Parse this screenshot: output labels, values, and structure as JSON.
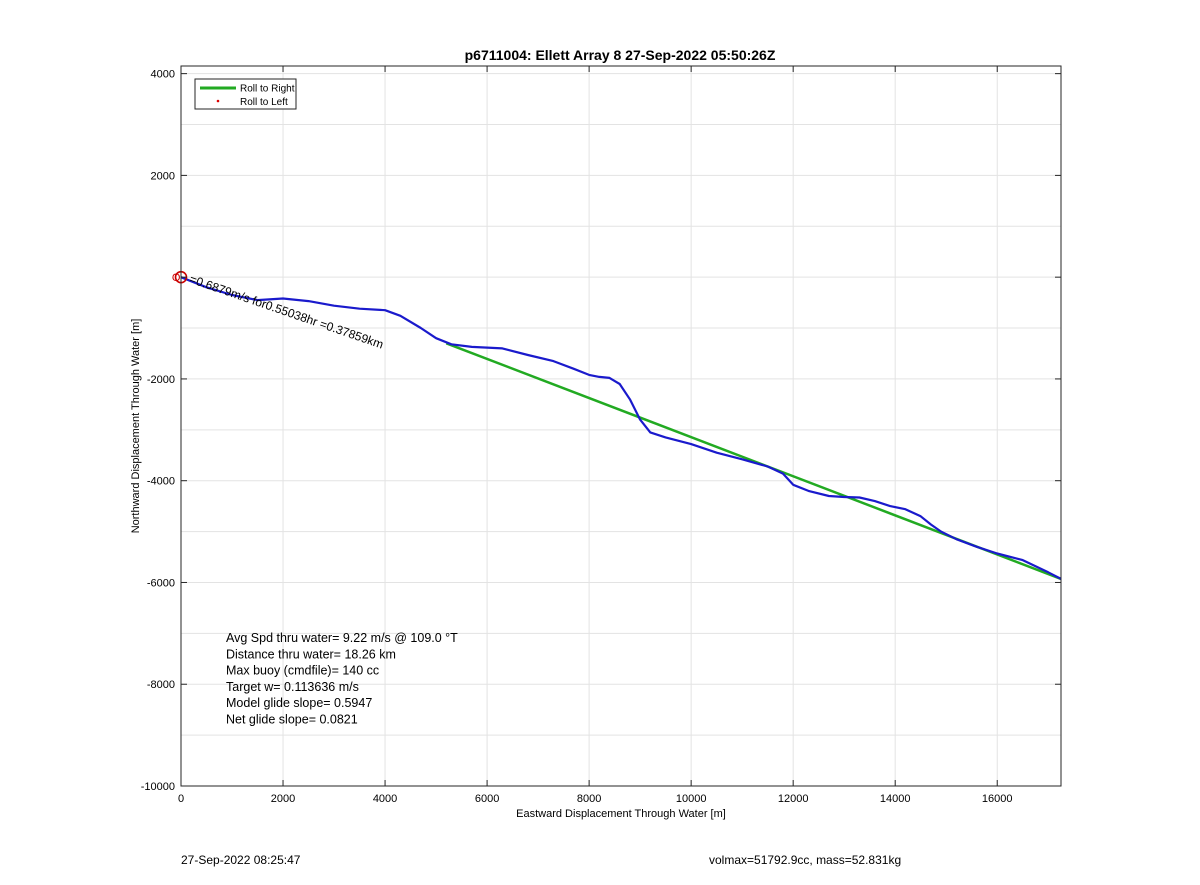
{
  "chart_data": {
    "type": "line",
    "title": "p6711004: Ellett Array 8 27-Sep-2022 05:50:26Z",
    "xlabel": "Eastward Displacement Through Water [m]",
    "ylabel": "Northward Displacement Through Water [m]",
    "xlim": [
      0,
      17250
    ],
    "ylim": [
      -10000,
      4150
    ],
    "xticks": [
      0,
      2000,
      4000,
      6000,
      8000,
      10000,
      12000,
      14000,
      16000
    ],
    "yticks": [
      -10000,
      -8000,
      -6000,
      -4000,
      -2000,
      2000,
      4000
    ],
    "grid": true,
    "legend": {
      "placement": "top-left",
      "entries": [
        {
          "label": "Roll to Right",
          "color": "#22aa22",
          "marker": "line"
        },
        {
          "label": "Roll to Left",
          "color": "#dd0000",
          "marker": "dot"
        }
      ]
    },
    "series": [
      {
        "color": "#22aa22",
        "x": [
          5200,
          17250
        ],
        "y": [
          -1300,
          -5930
        ]
      },
      {
        "color": "#1a1acc",
        "x": [
          0,
          500,
          1000,
          1500,
          2000,
          2500,
          3000,
          3500,
          4000,
          4300,
          4700,
          5000,
          5300,
          5700,
          6300,
          6800,
          7300,
          7700,
          8000,
          8200,
          8400,
          8600,
          8800,
          9000,
          9200,
          9500,
          10000,
          10500,
          11000,
          11500,
          11800,
          12000,
          12300,
          12700,
          13000,
          13300,
          13600,
          13900,
          14200,
          14500,
          14700,
          14900,
          15200,
          15600,
          16000,
          16500,
          17000,
          17250
        ],
        "y": [
          0,
          -200,
          -350,
          -450,
          -420,
          -470,
          -560,
          -620,
          -650,
          -760,
          -1000,
          -1200,
          -1320,
          -1370,
          -1400,
          -1530,
          -1650,
          -1800,
          -1920,
          -1960,
          -1980,
          -2100,
          -2400,
          -2800,
          -3050,
          -3150,
          -3280,
          -3450,
          -3580,
          -3720,
          -3860,
          -4080,
          -4200,
          -4300,
          -4320,
          -4330,
          -4400,
          -4500,
          -4560,
          -4700,
          -4860,
          -5000,
          -5150,
          -5300,
          -5430,
          -5560,
          -5800,
          -5930
        ]
      }
    ],
    "annotations": [
      {
        "text": "=0.6879m/s for0.55038hr =0.37859km",
        "x": 150,
        "y": -100,
        "rotation_deg": 19
      },
      {
        "text": "O",
        "x": -100,
        "y": 0,
        "color": "#cc0000"
      }
    ],
    "stats": [
      "Avg Spd thru water=  9.22 m/s @ 109.0 °T",
      "Distance thru water= 18.26 km",
      "Max buoy (cmdfile)= 140 cc",
      "Target w= 0.113636 m/s",
      "Model glide slope= 0.5947",
      "Net glide slope= 0.0821"
    ]
  },
  "footer": {
    "left": "27-Sep-2022 08:25:47",
    "right": "volmax=51792.9cc, mass=52.831kg"
  }
}
